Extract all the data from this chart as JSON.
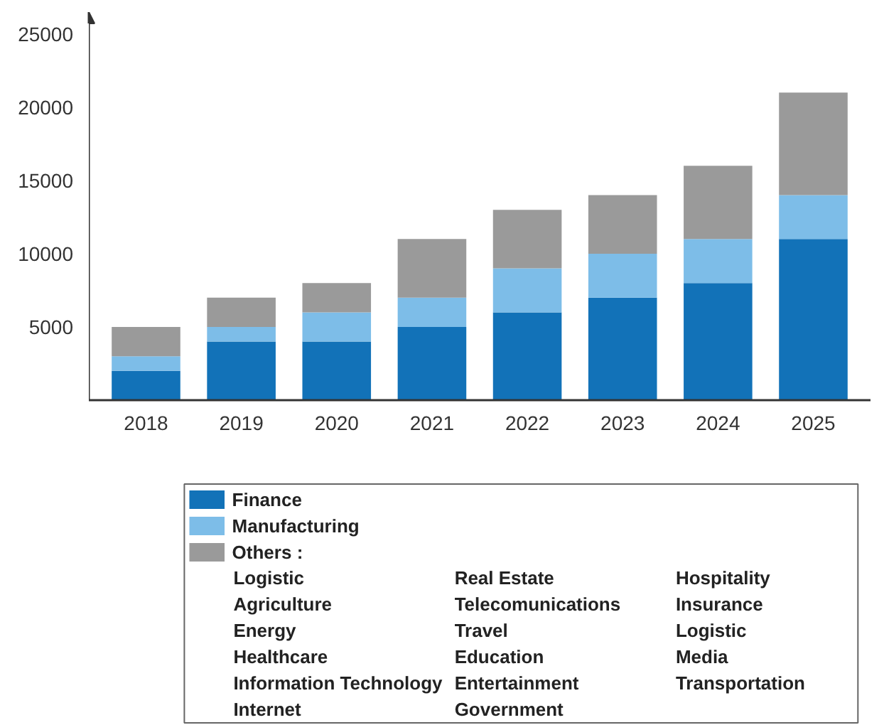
{
  "chart_data": {
    "type": "bar",
    "stacked": true,
    "categories": [
      "2018",
      "2019",
      "2020",
      "2021",
      "2022",
      "2023",
      "2024",
      "2025"
    ],
    "series": [
      {
        "name": "Finance",
        "color": "#1272b8",
        "values": [
          2000,
          4000,
          4000,
          5000,
          6000,
          7000,
          8000,
          11000
        ]
      },
      {
        "name": "Manufacturing",
        "color": "#7dbde8",
        "values": [
          1000,
          1000,
          2000,
          2000,
          3000,
          3000,
          3000,
          3000
        ]
      },
      {
        "name": "Others :",
        "color": "#9a9a9a",
        "values": [
          2000,
          2000,
          2000,
          4000,
          4000,
          4000,
          5000,
          7000
        ]
      }
    ],
    "ylim": [
      0,
      26500
    ],
    "yticks": [
      5000,
      10000,
      15000,
      20000,
      25000
    ],
    "grid": false,
    "legend": "bottom",
    "annotations": [
      "Logistic",
      "Agriculture",
      "Energy",
      "Healthcare",
      "Information Technology",
      "Internet",
      "Real Estate",
      "Telecomunications",
      "Travel",
      "Education",
      "Entertainment",
      "Government",
      "Hospitality",
      "Insurance",
      "Logistic",
      "Media",
      "Transportation"
    ]
  }
}
